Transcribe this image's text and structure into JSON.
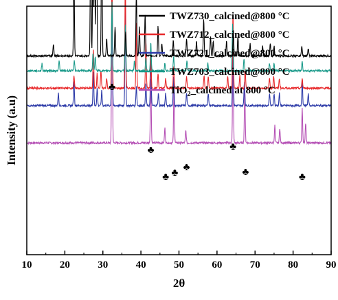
{
  "chart_data": {
    "type": "line",
    "title": "",
    "xlabel": "2θ",
    "ylabel": "Intensity (a.u)",
    "xlim": [
      10,
      90
    ],
    "x_ticks": [
      10,
      20,
      30,
      40,
      50,
      60,
      70,
      80,
      90
    ],
    "x_tick_labels": [
      "10",
      "20",
      "30",
      "40",
      "50",
      "60",
      "70",
      "80",
      "90"
    ],
    "y_ticks_shown": false,
    "grid": false,
    "legend_position": "top-right",
    "series": [
      {
        "name": "TWZ730_calcined@800 °C",
        "color": "#000000",
        "baseline": 0.8,
        "peaks": [
          [
            17.0,
            0.05
          ],
          [
            22.4,
            0.33
          ],
          [
            26.8,
            0.58
          ],
          [
            27.4,
            0.5
          ],
          [
            27.8,
            0.45
          ],
          [
            28.3,
            1.0
          ],
          [
            29.7,
            0.63
          ],
          [
            31.0,
            0.07
          ],
          [
            33.2,
            0.12
          ],
          [
            36.0,
            0.1
          ],
          [
            38.8,
            0.26
          ],
          [
            39.6,
            0.12
          ],
          [
            41.1,
            0.17
          ],
          [
            44.5,
            0.12
          ],
          [
            45.5,
            0.05
          ],
          [
            48.5,
            0.06
          ],
          [
            52.0,
            0.07
          ],
          [
            54.6,
            0.06
          ],
          [
            56.5,
            0.15
          ],
          [
            58.3,
            0.08
          ],
          [
            59.0,
            0.06
          ],
          [
            62.5,
            0.06
          ],
          [
            64.3,
            0.1
          ],
          [
            65.5,
            0.08
          ],
          [
            68.7,
            0.05
          ],
          [
            72.0,
            0.04
          ],
          [
            74.0,
            0.05
          ],
          [
            75.0,
            0.04
          ],
          [
            82.3,
            0.04
          ],
          [
            84.0,
            0.03
          ]
        ]
      },
      {
        "name": "TWZ712_calcined@800 °C",
        "color": "#e8292b",
        "baseline": 0.67,
        "peaks": [
          [
            22.4,
            0.05
          ],
          [
            27.5,
            0.16
          ],
          [
            28.5,
            0.06
          ],
          [
            29.5,
            0.07
          ],
          [
            31.0,
            0.04
          ],
          [
            32.4,
            0.47
          ],
          [
            35.9,
            0.46
          ],
          [
            38.8,
            0.26
          ],
          [
            41.3,
            0.2
          ],
          [
            42.6,
            0.16
          ],
          [
            44.5,
            0.06
          ],
          [
            46.5,
            0.04
          ],
          [
            48.6,
            0.09
          ],
          [
            52.0,
            0.05
          ],
          [
            56.6,
            0.05
          ],
          [
            57.7,
            0.05
          ],
          [
            62.8,
            0.05
          ],
          [
            64.2,
            0.31
          ],
          [
            66.0,
            0.05
          ],
          [
            67.4,
            0.08
          ],
          [
            73.8,
            0.04
          ],
          [
            74.9,
            0.05
          ],
          [
            76.4,
            0.04
          ],
          [
            82.4,
            0.04
          ]
        ]
      },
      {
        "name": "TWZ721_calcined@800 °C",
        "color": "#2d3ba8",
        "baseline": 0.6,
        "peaks": [
          [
            18.3,
            0.05
          ],
          [
            22.4,
            0.1
          ],
          [
            27.5,
            0.14
          ],
          [
            28.5,
            0.07
          ],
          [
            29.7,
            0.06
          ],
          [
            32.4,
            0.47
          ],
          [
            35.9,
            0.4
          ],
          [
            38.8,
            0.08
          ],
          [
            41.3,
            0.09
          ],
          [
            42.6,
            0.2
          ],
          [
            44.6,
            0.05
          ],
          [
            46.5,
            0.05
          ],
          [
            48.6,
            0.12
          ],
          [
            52.0,
            0.05
          ],
          [
            57.7,
            0.05
          ],
          [
            64.2,
            0.27
          ],
          [
            67.2,
            0.1
          ],
          [
            73.8,
            0.05
          ],
          [
            75.0,
            0.05
          ],
          [
            76.4,
            0.05
          ],
          [
            82.4,
            0.1
          ],
          [
            84.0,
            0.05
          ]
        ]
      },
      {
        "name": "TWZ703_calcined@800 °C",
        "color": "#1a9a8a",
        "baseline": 0.74,
        "peaks": [
          [
            14.0,
            0.03
          ],
          [
            18.5,
            0.04
          ],
          [
            22.5,
            0.04
          ],
          [
            27.4,
            0.07
          ],
          [
            28.0,
            0.06
          ],
          [
            32.4,
            0.28
          ],
          [
            35.9,
            0.19
          ],
          [
            38.3,
            0.04
          ],
          [
            41.3,
            0.05
          ],
          [
            42.6,
            0.12
          ],
          [
            46.3,
            0.03
          ],
          [
            48.6,
            0.06
          ],
          [
            52.1,
            0.04
          ],
          [
            57.6,
            0.03
          ],
          [
            64.1,
            0.19
          ],
          [
            67.1,
            0.05
          ],
          [
            73.8,
            0.03
          ],
          [
            75.0,
            0.03
          ],
          [
            82.4,
            0.04
          ]
        ]
      },
      {
        "name": "TiO2_calcined at 800 °C",
        "color": "#b550b5",
        "baseline": 0.45,
        "peaks": [
          [
            32.4,
            0.67
          ],
          [
            42.6,
            0.27
          ],
          [
            46.3,
            0.06
          ],
          [
            48.7,
            0.24
          ],
          [
            51.8,
            0.05
          ],
          [
            64.2,
            0.37
          ],
          [
            67.3,
            0.22
          ],
          [
            75.2,
            0.07
          ],
          [
            76.5,
            0.06
          ],
          [
            82.4,
            0.14
          ],
          [
            83.3,
            0.08
          ]
        ]
      }
    ],
    "annotations": {
      "symbol": "♣",
      "peaks_2theta": [
        32.4,
        42.6,
        46.5,
        48.9,
        52.0,
        64.2,
        67.5,
        82.4
      ]
    }
  }
}
